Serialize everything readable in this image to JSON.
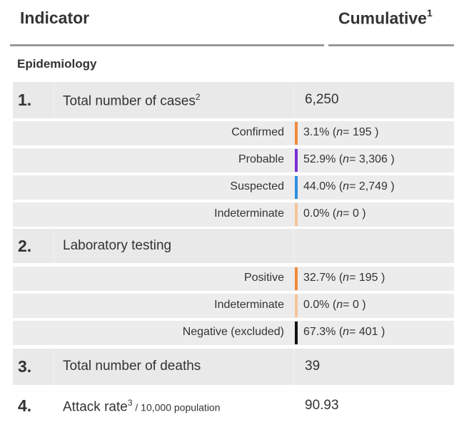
{
  "header": {
    "indicator": "Indicator",
    "cumulative": "Cumulative",
    "cumulative_sup": "1"
  },
  "section": "Epidemiology",
  "rows": [
    {
      "num": "1.",
      "label": "Total number of cases",
      "label_sup": "2",
      "value": "6,250"
    },
    {
      "num": "2.",
      "label": "Laboratory testing",
      "value": ""
    },
    {
      "num": "3.",
      "label": "Total number of deaths",
      "value": "39"
    },
    {
      "num": "4.",
      "label": "Attack rate",
      "label_sup": "3",
      "label_small": " / 10,000 population",
      "value": "90.93"
    }
  ],
  "cases_breakdown": [
    {
      "label": "Confirmed",
      "pct": "3.1%",
      "n": "195",
      "color": "#f08a3c"
    },
    {
      "label": "Probable",
      "pct": "52.9%",
      "n": "3,306",
      "color": "#7b2fd6"
    },
    {
      "label": "Suspected",
      "pct": "44.0%",
      "n": "2,749",
      "color": "#2f8de0"
    },
    {
      "label": "Indeterminate",
      "pct": "0.0%",
      "n": "0",
      "color": "#f6c39a"
    }
  ],
  "lab_breakdown": [
    {
      "label": "Positive",
      "pct": "32.7%",
      "n": "195",
      "color": "#f08a3c"
    },
    {
      "label": "Indeterminate",
      "pct": "0.0%",
      "n": "0",
      "color": "#f6c39a"
    },
    {
      "label": "Negative (excluded)",
      "pct": "67.3%",
      "n": "401",
      "color": "#111111"
    }
  ],
  "n_label": "n"
}
